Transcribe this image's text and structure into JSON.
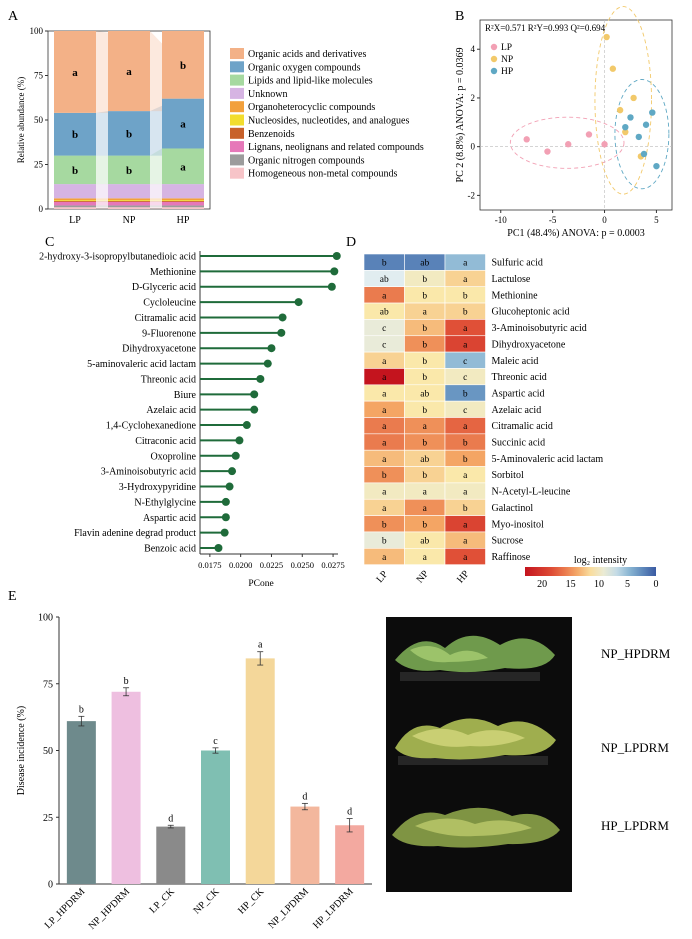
{
  "panels": {
    "A": "A",
    "B": "B",
    "C": "C",
    "D": "D",
    "E": "E"
  },
  "chart_data": [
    {
      "id": "A",
      "type": "bar",
      "stacked": true,
      "ylabel": "Relative abundance (%)",
      "ylim": [
        0,
        100
      ],
      "yticks": [
        0,
        25,
        50,
        75,
        100
      ],
      "categories": [
        "LP",
        "NP",
        "HP"
      ],
      "series": [
        {
          "name": "Homogeneous non-metal compounds",
          "color": "#f7c4c8",
          "values": [
            1,
            1,
            1
          ]
        },
        {
          "name": "Organic nitrogen compounds",
          "color": "#9c9c9c",
          "values": [
            1,
            1,
            1
          ]
        },
        {
          "name": "Lignans, neolignans and related compounds",
          "color": "#e678b9",
          "values": [
            2,
            2,
            2
          ]
        },
        {
          "name": "Benzenoids",
          "color": "#c8612a",
          "values": [
            0.5,
            0.5,
            0.5
          ]
        },
        {
          "name": "Nucleosides, nucleotides, and analogues",
          "color": "#f2dd2e",
          "values": [
            0.5,
            0.5,
            0.5
          ]
        },
        {
          "name": "Organoheterocyclic compounds",
          "color": "#f2a03c",
          "values": [
            1,
            1,
            1
          ]
        },
        {
          "name": "Unknown",
          "color": "#d6b4e3",
          "values": [
            8,
            8,
            8
          ]
        },
        {
          "name": "Lipids and lipid-like molecules",
          "color": "#a6d9a0",
          "values": [
            16,
            16,
            20
          ]
        },
        {
          "name": "Organic oxygen compounds",
          "color": "#6ea3c8",
          "values": [
            24,
            25,
            28
          ]
        },
        {
          "name": "Organic acids and derivatives",
          "color": "#f3b187",
          "values": [
            46,
            45,
            38
          ]
        }
      ],
      "letters": {
        "Organic acids and derivatives": [
          "a",
          "a",
          "b"
        ],
        "Organic oxygen compounds": [
          "b",
          "b",
          "a"
        ],
        "Lipids and lipid-like molecules": [
          "b",
          "b",
          "a"
        ]
      },
      "legend_order": [
        "Organic acids and derivatives",
        "Organic oxygen compounds",
        "Lipids and lipid-like molecules",
        "Unknown",
        "Organoheterocyclic compounds",
        "Nucleosides, nucleotides, and analogues",
        "Benzenoids",
        "Lignans, neolignans and related compounds",
        "Organic nitrogen compounds",
        "Homogeneous non-metal compounds"
      ]
    },
    {
      "id": "B",
      "type": "scatter",
      "annotation": "R²X=0.571 R²Y=0.993 Q²=0.694",
      "xlabel": "PC1 (48.4%) ANOVA: p = 0.0003",
      "ylabel": "PC 2 (8.8%) ANOVA: p = 0.0369",
      "xlim": [
        -12,
        6.5
      ],
      "ylim": [
        -2.6,
        5.2
      ],
      "xticks": [
        -10,
        -5,
        0,
        5
      ],
      "yticks": [
        -2,
        0,
        2,
        4
      ],
      "series": [
        {
          "name": "LP",
          "color": "#f2a0b4",
          "x": [
            -7.5,
            -5.5,
            -3.5,
            -1.5,
            0
          ],
          "y": [
            0.3,
            -0.2,
            0.1,
            0.5,
            0.1
          ]
        },
        {
          "name": "NP",
          "color": "#f2c96a",
          "x": [
            0.2,
            0.8,
            1.5,
            2.0,
            2.8,
            3.5
          ],
          "y": [
            4.5,
            3.2,
            1.5,
            0.6,
            2.0,
            -0.4
          ]
        },
        {
          "name": "HP",
          "color": "#5fa8c4",
          "x": [
            2.0,
            2.5,
            3.3,
            4.0,
            4.6,
            5.0,
            3.8
          ],
          "y": [
            0.8,
            1.2,
            0.4,
            0.9,
            1.4,
            -0.8,
            -0.3
          ]
        }
      ]
    },
    {
      "id": "C",
      "type": "scatter",
      "style": "lollipop",
      "xlabel": "PCone",
      "xlim": [
        0.0167,
        0.0279
      ],
      "xticks": [
        0.0175,
        0.02,
        0.0225,
        0.025,
        0.0275
      ],
      "xtick_labels": [
        "0.0175",
        "0.0200",
        "0.0225",
        "0.0250",
        "0.0275"
      ],
      "categories": [
        "2-hydroxy-3-isopropylbutanedioic acid",
        "Methionine",
        "D-Glyceric acid",
        "Cycloleucine",
        "Citramalic acid",
        "9-Fluorenone",
        "Dihydroxyacetone",
        "5-aminovaleric acid lactam",
        "Threonic acid",
        "Biure",
        "Azelaic acid",
        "1,4-Cyclohexanedione",
        "Citraconic acid",
        "Oxoproline",
        "3-Aminoisobutyric acid",
        "3-Hydroxypyridine",
        "N-Ethylglycine",
        "Aspartic acid",
        "Flavin adenine degrad product",
        "Benzoic acid"
      ],
      "values": [
        0.0278,
        0.0276,
        0.0274,
        0.0247,
        0.0234,
        0.0233,
        0.0225,
        0.0222,
        0.0216,
        0.0211,
        0.0211,
        0.0205,
        0.0199,
        0.0196,
        0.0193,
        0.0191,
        0.0188,
        0.0188,
        0.0187,
        0.0182
      ],
      "color": "#1f6b3a"
    },
    {
      "id": "D",
      "type": "heatmap",
      "columns": [
        "LP",
        "NP",
        "HP"
      ],
      "rows": [
        "Sulfuric acid",
        "Lactulose",
        "Methionine",
        "Glucoheptonic acid",
        "3-Aminoisobutyric acid",
        "Dihydroxyacetone",
        "Maleic acid",
        "Threonic acid",
        "Aspartic acid",
        "Azelaic acid",
        "Citramalic acid",
        "Succinic acid",
        "5-Aminovaleric acid lactam",
        "Sorbitol",
        "N-Acetyl-L-leucine",
        "Galactinol",
        "Myo-inositol",
        "Sucrose",
        "Raffinose"
      ],
      "values": [
        [
          2,
          2,
          5
        ],
        [
          8,
          10,
          12
        ],
        [
          16,
          11,
          11
        ],
        [
          11,
          12,
          12
        ],
        [
          9,
          13,
          18
        ],
        [
          9,
          15,
          19
        ],
        [
          12,
          11,
          5
        ],
        [
          23,
          11,
          10
        ],
        [
          11,
          11,
          3
        ],
        [
          14,
          11,
          10
        ],
        [
          16,
          15,
          17
        ],
        [
          16,
          15,
          16
        ],
        [
          13,
          12,
          14
        ],
        [
          15,
          12,
          11
        ],
        [
          10,
          10,
          10
        ],
        [
          12,
          15,
          12
        ],
        [
          15,
          14,
          19
        ],
        [
          9,
          11,
          13
        ],
        [
          13,
          11,
          18
        ]
      ],
      "letters": [
        [
          "b",
          "ab",
          "a"
        ],
        [
          "ab",
          "b",
          "a"
        ],
        [
          "a",
          "b",
          "b"
        ],
        [
          "ab",
          "a",
          "b"
        ],
        [
          "c",
          "b",
          "a"
        ],
        [
          "c",
          "b",
          "a"
        ],
        [
          "a",
          "b",
          "c"
        ],
        [
          "a",
          "b",
          "c"
        ],
        [
          "a",
          "ab",
          "b"
        ],
        [
          "a",
          "b",
          "c"
        ],
        [
          "a",
          "a",
          "a"
        ],
        [
          "a",
          "b",
          "b"
        ],
        [
          "a",
          "ab",
          "b"
        ],
        [
          "b",
          "b",
          "a"
        ],
        [
          "a",
          "a",
          "a"
        ],
        [
          "a",
          "a",
          "b"
        ],
        [
          "b",
          "b",
          "a"
        ],
        [
          "b",
          "ab",
          "a"
        ],
        [
          "a",
          "a",
          "a"
        ]
      ],
      "colorbar": {
        "label": "log₂ intensity",
        "ticks": [
          "20",
          "15",
          "10",
          "5",
          "0"
        ],
        "range": [
          0,
          23
        ]
      }
    },
    {
      "id": "E",
      "type": "bar",
      "ylabel": "Disease incidence (%)",
      "ylim": [
        0,
        100
      ],
      "yticks": [
        0,
        25,
        50,
        75,
        100
      ],
      "categories": [
        "LP_HPDRM",
        "NP_HPDRM",
        "LP_CK",
        "NP_CK",
        "HP_CK",
        "NP_LPDRM",
        "HP_LPDRM"
      ],
      "values": [
        61,
        72,
        21.5,
        50,
        84.5,
        29,
        22
      ],
      "errors": [
        1.8,
        1.5,
        0.5,
        1.0,
        2.5,
        1.2,
        2.5
      ],
      "letters": [
        "b",
        "b",
        "d",
        "c",
        "a",
        "d",
        "d"
      ],
      "colors": [
        "#6e8a8c",
        "#eebfe0",
        "#8a8a8a",
        "#7fbfb2",
        "#f4d79a",
        "#f3b79d",
        "#f3a9a0"
      ]
    }
  ],
  "photo": {
    "labels": [
      "NP_HPDRM",
      "NP_LPDRM",
      "HP_LPDRM"
    ]
  }
}
